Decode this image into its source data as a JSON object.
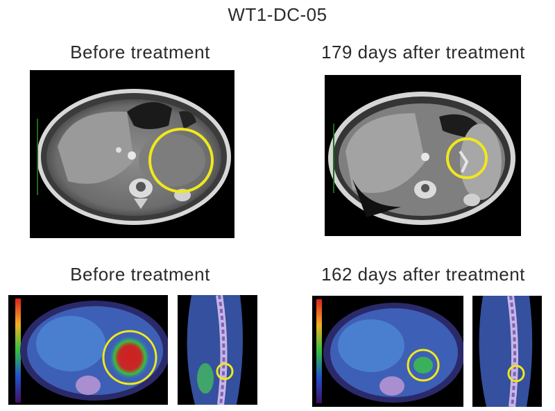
{
  "figure": {
    "title": "WT1-DC-05",
    "ct_before_label": "Before treatment",
    "ct_after_label": "179 days after treatment",
    "pet_before_label": "Before treatment",
    "pet_after_label": "162 days after treatment"
  },
  "colors": {
    "background": "#ffffff",
    "scan_background": "#000000",
    "highlight_circle": "#f0e81c",
    "pet_hotspot": "#d21f1f"
  }
}
